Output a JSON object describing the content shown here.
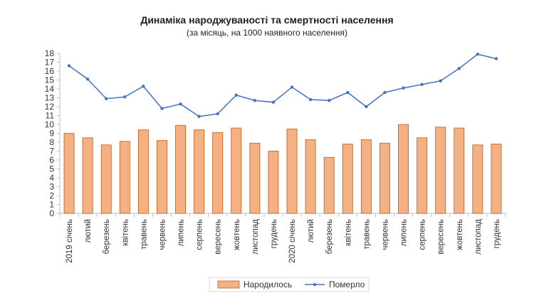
{
  "chart_data": {
    "type": "bar",
    "title": "Динаміка народжуваності та смертності населення",
    "subtitle": "(за місяць, на 1000 наявного населення)",
    "xlabel": "",
    "ylabel": "",
    "ylim": [
      0,
      18
    ],
    "yticks": [
      0,
      1,
      2,
      3,
      4,
      5,
      6,
      7,
      8,
      9,
      10,
      11,
      12,
      13,
      14,
      15,
      16,
      17,
      18
    ],
    "categories": [
      "2019 січень",
      "лютий",
      "березень",
      "квітень",
      "травень",
      "червень",
      "липень",
      "серпень",
      "вересень",
      "жовтень",
      "листопад",
      "грудень",
      "2020 січень",
      "лютий",
      "березень",
      "квітень",
      "травень",
      "червень",
      "липень",
      "серпень",
      "вересень",
      "жовтень",
      "листопад",
      "грудень"
    ],
    "series": [
      {
        "name": "Народилось",
        "type": "bar",
        "color": "#f4b183",
        "values": [
          9.0,
          8.5,
          7.7,
          8.1,
          9.4,
          8.2,
          9.9,
          9.4,
          9.1,
          9.6,
          7.9,
          7.0,
          9.5,
          8.3,
          6.3,
          7.8,
          8.3,
          7.9,
          10.0,
          8.5,
          9.7,
          9.6,
          7.7,
          7.8
        ]
      },
      {
        "name": "Померло",
        "type": "line",
        "color": "#4472c4",
        "values": [
          16.6,
          15.1,
          12.9,
          13.1,
          14.3,
          11.8,
          12.3,
          10.9,
          11.2,
          13.3,
          12.7,
          12.5,
          14.2,
          12.8,
          12.7,
          13.6,
          12.0,
          13.6,
          14.1,
          14.5,
          14.9,
          16.3,
          17.9,
          17.4
        ]
      }
    ],
    "grid": false,
    "legend_position": "bottom"
  }
}
